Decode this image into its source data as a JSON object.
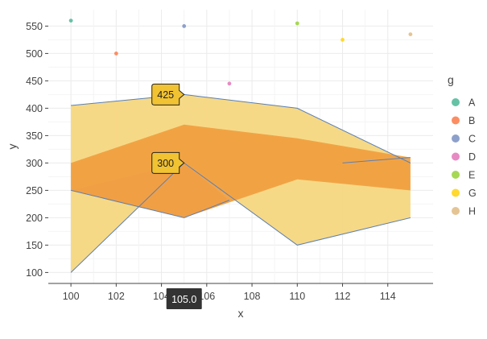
{
  "chart_data": {
    "type": "area",
    "xlabel": "x",
    "ylabel": "y",
    "xlim": [
      99,
      116
    ],
    "ylim": [
      80,
      580
    ],
    "x_ticks": [
      100,
      102,
      104,
      106,
      108,
      110,
      112,
      114
    ],
    "x_tick_labels": [
      "100",
      "102",
      "104",
      "106",
      "108",
      "110",
      "112",
      "114"
    ],
    "y_ticks": [
      100,
      150,
      200,
      250,
      300,
      350,
      400,
      450,
      500,
      550
    ],
    "y_tick_labels": [
      "100",
      "150",
      "200",
      "250",
      "300",
      "350",
      "400",
      "450",
      "500",
      "550"
    ],
    "grid": true,
    "legend": {
      "title": "g",
      "position": "right",
      "items": [
        {
          "label": "A",
          "color": "#66c2a5"
        },
        {
          "label": "B",
          "color": "#fc8d62"
        },
        {
          "label": "C",
          "color": "#8da0cb"
        },
        {
          "label": "D",
          "color": "#e78ac3"
        },
        {
          "label": "E",
          "color": "#a6d854"
        },
        {
          "label": "G",
          "color": "#ffd92f"
        },
        {
          "label": "H",
          "color": "#e5c494"
        }
      ]
    },
    "ribbons": [
      {
        "fill": "#f6d77f",
        "x": [
          100,
          105,
          110,
          115
        ],
        "ymin": [
          100,
          300,
          150,
          200
        ],
        "ymax": [
          405,
          425,
          400,
          300
        ]
      },
      {
        "fill": "#f08080",
        "x": [
          100,
          105,
          107
        ],
        "ymin": [
          250,
          200,
          232
        ],
        "ymax": [
          250,
          300,
          232
        ]
      },
      {
        "fill": "#f0a040",
        "x": [
          100,
          105,
          110,
          115
        ],
        "ymin": [
          250,
          200,
          270,
          250
        ],
        "ymax": [
          300,
          370,
          345,
          310
        ]
      }
    ],
    "outline_lines": [
      {
        "x": [
          100,
          105,
          110,
          115
        ],
        "y": [
          405,
          425,
          400,
          300
        ]
      },
      {
        "x": [
          100,
          105,
          110,
          115
        ],
        "y": [
          100,
          300,
          150,
          200
        ]
      },
      {
        "x": [
          100,
          105,
          107
        ],
        "y": [
          250,
          200,
          232
        ]
      },
      {
        "x": [
          112,
          115
        ],
        "y": [
          300,
          310
        ]
      }
    ],
    "points": [
      {
        "x": 100,
        "y": 560,
        "group": "A"
      },
      {
        "x": 102,
        "y": 500,
        "group": "B"
      },
      {
        "x": 105,
        "y": 550,
        "group": "C"
      },
      {
        "x": 107,
        "y": 445,
        "group": "D"
      },
      {
        "x": 110,
        "y": 555,
        "group": "E"
      },
      {
        "x": 112,
        "y": 525,
        "group": "G"
      },
      {
        "x": 115,
        "y": 535,
        "group": "H"
      }
    ],
    "hover": {
      "x_label": "105.0",
      "tooltips": [
        {
          "text": "425",
          "y": 425
        },
        {
          "text": "300",
          "y": 300
        }
      ]
    }
  }
}
